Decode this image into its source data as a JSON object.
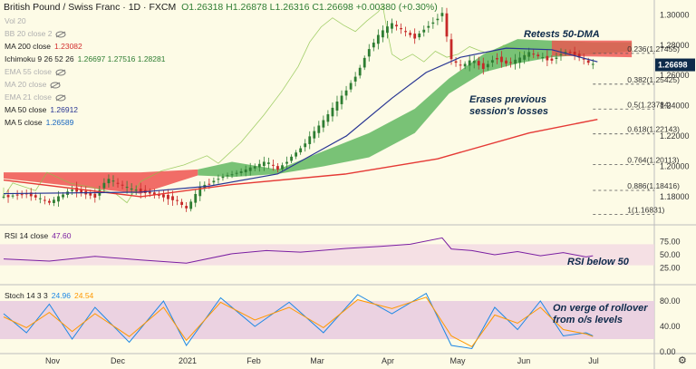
{
  "header": {
    "title": "British Pound / Swiss Franc · 1D · FXCM",
    "ohlc": "O1.26318 H1.26878 L1.26316 C1.26698 +0.00380 (+0.30%)"
  },
  "indicators": [
    {
      "name": "Vol 20",
      "value": "",
      "color": "#b0b0b0",
      "eye": false
    },
    {
      "name": "BB 20 close 2",
      "value": "",
      "color": "#b0b0b0",
      "eye": true
    },
    {
      "name": "MA 200 close",
      "value": "1.23082",
      "color": "#222",
      "valcolor": "#d32f2f",
      "eye": false
    },
    {
      "name": "Ichimoku 9 26 52 26",
      "value": "1.26697  1.27516  1.28281",
      "color": "#222",
      "valcolor": "#2e7d32",
      "eye": false
    },
    {
      "name": "EMA 55 close",
      "value": "",
      "color": "#b0b0b0",
      "eye": true
    },
    {
      "name": "MA 20 close",
      "value": "",
      "color": "#b0b0b0",
      "eye": true
    },
    {
      "name": "EMA 21 close",
      "value": "",
      "color": "#b0b0b0",
      "eye": true
    },
    {
      "name": "MA 50 close",
      "value": "1.26912",
      "color": "#222",
      "valcolor": "#283593",
      "eye": false
    },
    {
      "name": "MA 5 close",
      "value": "1.26589",
      "color": "#222",
      "valcolor": "#1565c0",
      "eye": false
    }
  ],
  "annotations": {
    "retests": "Retests 50-DMA",
    "erases": "Erases previous session's losses",
    "rsi": "RSI below 50",
    "stoch": "On verge of rollover from o/s levels"
  },
  "rsi_label": {
    "name": "RSI 14 close",
    "value": "47.60"
  },
  "stoch_label": {
    "name": "Stoch 14 3 3",
    "k": "24.96",
    "d": "24.54"
  },
  "colors": {
    "background": "#fdfbe6",
    "bull": "#2e7d32",
    "bear": "#c62828",
    "ma200": "#e53935",
    "ma50": "#283593",
    "cloud_bull": "#4caf50",
    "cloud_bear": "#ef5350",
    "rsi": "#7b1fa2",
    "stoch_k": "#1e88e5",
    "stoch_d": "#ff9800"
  },
  "chart_data": {
    "type": "candlestick",
    "title": "British Pound / Swiss Franc · 1D · FXCM",
    "x_ticks": [
      "Nov",
      "Dec",
      "2021",
      "Feb",
      "Mar",
      "Apr",
      "May",
      "Jun",
      "Jul"
    ],
    "y_ticks": [
      "1.30000",
      "1.28000",
      "1.26000",
      "1.24000",
      "1.22000",
      "1.20000",
      "1.18000"
    ],
    "ylim": [
      1.165,
      1.305
    ],
    "last_price": "1.26698",
    "fib_levels": [
      {
        "label": "0.236(1.27455)",
        "value": 1.27455
      },
      {
        "label": "0.382(1.25425)",
        "value": 1.25425
      },
      {
        "label": "0.5(1.23784)",
        "value": 1.23784
      },
      {
        "label": "0.618(1.22143)",
        "value": 1.22143
      },
      {
        "label": "0.764(1.20113)",
        "value": 1.20113
      },
      {
        "label": "0.886(1.18416)",
        "value": 1.18416
      },
      {
        "label": "1(1.16831)",
        "value": 1.16831
      }
    ],
    "price_path": [
      [
        0,
        1.18
      ],
      [
        10,
        1.182
      ],
      [
        20,
        1.176
      ],
      [
        30,
        1.185
      ],
      [
        40,
        1.18
      ],
      [
        45,
        1.192
      ],
      [
        55,
        1.185
      ],
      [
        65,
        1.182
      ],
      [
        75,
        1.178
      ],
      [
        80,
        1.172
      ],
      [
        86,
        1.186
      ],
      [
        95,
        1.193
      ],
      [
        105,
        1.197
      ],
      [
        115,
        1.203
      ],
      [
        120,
        1.198
      ],
      [
        130,
        1.212
      ],
      [
        140,
        1.23
      ],
      [
        148,
        1.246
      ],
      [
        155,
        1.262
      ],
      [
        160,
        1.278
      ],
      [
        165,
        1.288
      ],
      [
        170,
        1.294
      ],
      [
        175,
        1.289
      ],
      [
        180,
        1.285
      ],
      [
        185,
        1.292
      ],
      [
        190,
        1.298
      ],
      [
        192,
        1.302
      ],
      [
        194,
        1.285
      ],
      [
        196,
        1.27
      ],
      [
        200,
        1.266
      ],
      [
        205,
        1.27
      ],
      [
        210,
        1.265
      ],
      [
        215,
        1.272
      ],
      [
        220,
        1.268
      ],
      [
        225,
        1.27
      ],
      [
        230,
        1.275
      ],
      [
        235,
        1.272
      ],
      [
        240,
        1.27
      ],
      [
        245,
        1.276
      ],
      [
        250,
        1.274
      ],
      [
        255,
        1.269
      ],
      [
        258,
        1.267
      ]
    ],
    "ma200": [
      [
        0,
        1.191
      ],
      [
        60,
        1.18
      ],
      [
        100,
        1.188
      ],
      [
        150,
        1.195
      ],
      [
        190,
        1.205
      ],
      [
        230,
        1.222
      ],
      [
        260,
        1.231
      ]
    ],
    "ma50": [
      [
        0,
        1.182
      ],
      [
        60,
        1.183
      ],
      [
        90,
        1.187
      ],
      [
        120,
        1.195
      ],
      [
        150,
        1.22
      ],
      [
        170,
        1.245
      ],
      [
        185,
        1.262
      ],
      [
        200,
        1.272
      ],
      [
        220,
        1.278
      ],
      [
        240,
        1.277
      ],
      [
        260,
        1.269
      ]
    ],
    "cloud_top": [
      [
        85,
        1.198
      ],
      [
        100,
        1.203
      ],
      [
        120,
        1.198
      ],
      [
        140,
        1.21
      ],
      [
        160,
        1.222
      ],
      [
        180,
        1.238
      ],
      [
        195,
        1.258
      ],
      [
        210,
        1.274
      ],
      [
        225,
        1.284
      ],
      [
        240,
        1.283
      ],
      [
        258,
        1.282
      ],
      [
        275,
        1.282
      ]
    ],
    "cloud_bottom": [
      [
        85,
        1.194
      ],
      [
        100,
        1.193
      ],
      [
        120,
        1.195
      ],
      [
        140,
        1.2
      ],
      [
        160,
        1.206
      ],
      [
        180,
        1.222
      ],
      [
        195,
        1.248
      ],
      [
        210,
        1.262
      ],
      [
        225,
        1.268
      ],
      [
        240,
        1.272
      ],
      [
        258,
        1.274
      ],
      [
        275,
        1.276
      ]
    ],
    "rsi": {
      "last": 47.6,
      "upper": 70,
      "lower": 30,
      "ticks": [
        "75.00",
        "50.00",
        "25.00"
      ],
      "series": [
        [
          0,
          42
        ],
        [
          20,
          38
        ],
        [
          40,
          47
        ],
        [
          60,
          40
        ],
        [
          80,
          34
        ],
        [
          100,
          52
        ],
        [
          115,
          58
        ],
        [
          130,
          55
        ],
        [
          150,
          62
        ],
        [
          165,
          66
        ],
        [
          178,
          70
        ],
        [
          192,
          82
        ],
        [
          196,
          61
        ],
        [
          205,
          58
        ],
        [
          215,
          50
        ],
        [
          225,
          56
        ],
        [
          235,
          48
        ],
        [
          245,
          54
        ],
        [
          255,
          46
        ],
        [
          258,
          48
        ]
      ]
    },
    "stoch": {
      "k_last": 24.96,
      "d_last": 24.54,
      "upper": 80,
      "lower": 20,
      "ticks": [
        "80.00",
        "40.00",
        "0.00"
      ],
      "k": [
        [
          0,
          60
        ],
        [
          10,
          30
        ],
        [
          20,
          75
        ],
        [
          30,
          20
        ],
        [
          40,
          70
        ],
        [
          55,
          15
        ],
        [
          70,
          80
        ],
        [
          80,
          10
        ],
        [
          95,
          85
        ],
        [
          110,
          40
        ],
        [
          125,
          78
        ],
        [
          140,
          30
        ],
        [
          155,
          90
        ],
        [
          170,
          60
        ],
        [
          185,
          92
        ],
        [
          196,
          10
        ],
        [
          205,
          5
        ],
        [
          215,
          70
        ],
        [
          225,
          35
        ],
        [
          235,
          80
        ],
        [
          245,
          25
        ],
        [
          255,
          30
        ],
        [
          258,
          25
        ]
      ],
      "d": [
        [
          0,
          55
        ],
        [
          10,
          38
        ],
        [
          20,
          62
        ],
        [
          30,
          32
        ],
        [
          40,
          60
        ],
        [
          55,
          24
        ],
        [
          70,
          70
        ],
        [
          80,
          18
        ],
        [
          95,
          78
        ],
        [
          110,
          50
        ],
        [
          125,
          70
        ],
        [
          140,
          38
        ],
        [
          155,
          82
        ],
        [
          170,
          68
        ],
        [
          185,
          86
        ],
        [
          196,
          25
        ],
        [
          205,
          8
        ],
        [
          215,
          58
        ],
        [
          225,
          45
        ],
        [
          235,
          70
        ],
        [
          245,
          35
        ],
        [
          255,
          28
        ],
        [
          258,
          24
        ]
      ]
    }
  }
}
